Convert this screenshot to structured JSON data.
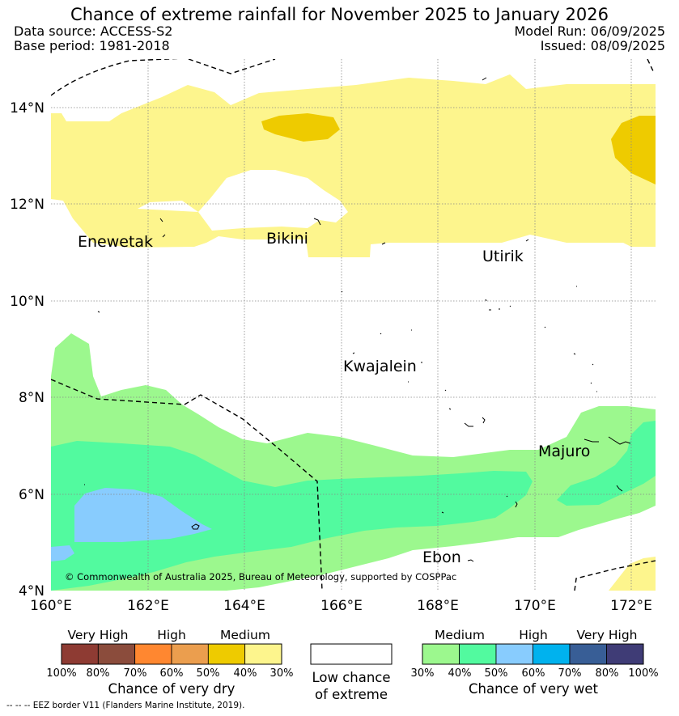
{
  "header": {
    "title": "Chance of extreme rainfall for November 2025 to January 2026",
    "data_source": "Data source: ACCESS-S2",
    "base_period": "Base period: 1981-2018",
    "model_run": "Model Run: 06/09/2025",
    "issued": "Issued: 08/09/2025"
  },
  "map": {
    "lon_range": [
      160,
      172.5
    ],
    "lat_range": [
      4,
      15
    ],
    "lat_labels": [
      "14°N",
      "12°N",
      "10°N",
      "8°N",
      "6°N",
      "4°N"
    ],
    "lon_labels": [
      "160°E",
      "162°E",
      "164°E",
      "166°E",
      "168°E",
      "170°E",
      "172°E"
    ],
    "places": [
      "Enewetak",
      "Bikini",
      "Utirik",
      "Kwajalein",
      "Majuro",
      "Ebon"
    ],
    "copyright": "© Commonwealth of Australia 2025, Bureau of Meteorology, supported by COSPPac",
    "colors": {
      "dry_medium": "#eecb00",
      "dry_low": "#fdf58d",
      "wet_medium": "#9cf88e",
      "wet_high": "#52fa9f",
      "wet_higher": "#88ccfe"
    }
  },
  "legend": {
    "dry": {
      "groups": [
        "Very High",
        "High",
        "Medium"
      ],
      "ticks": [
        "100%",
        "80%",
        "70%",
        "60%",
        "50%",
        "40%",
        "30%"
      ],
      "colors": [
        "#8e3b33",
        "#8b4c3c",
        "#ff8730",
        "#eb9e4e",
        "#eecb00",
        "#fdf58d"
      ],
      "title": "Chance of very dry"
    },
    "neutral": {
      "line1": "Low chance",
      "line2": "of extreme",
      "color": "#ffffff"
    },
    "wet": {
      "groups": [
        "Medium",
        "High",
        "Very High"
      ],
      "ticks": [
        "30%",
        "40%",
        "50%",
        "60%",
        "70%",
        "80%",
        "100%"
      ],
      "colors": [
        "#9cf88e",
        "#52fa9f",
        "#88ccfe",
        "#00b2ee",
        "#385e96",
        "#3f3c76"
      ],
      "title": "Chance of very wet"
    }
  },
  "footer": {
    "eez_note": "--  --  -- EEZ border V11 (Flanders Marine Institute, 2019)."
  }
}
